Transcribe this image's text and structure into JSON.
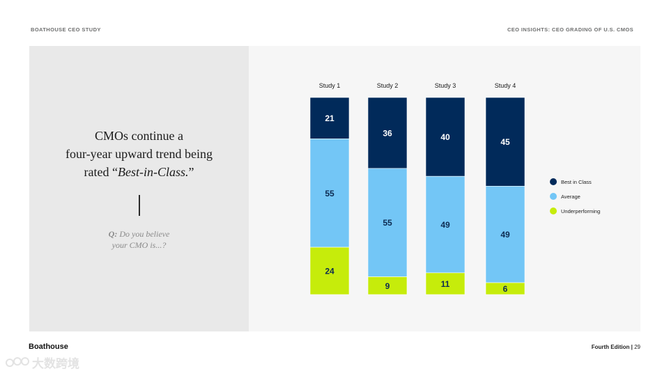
{
  "header": {
    "left": "BOATHOUSE CEO STUDY",
    "right": "CEO INSIGHTS: CEO GRADING OF U.S. CMOs"
  },
  "headline": {
    "line1": "CMOs continue a",
    "line2": "four-year upward trend being",
    "line3_prefix": "rated “",
    "line3_emph": "Best-in-Class.",
    "line3_suffix": "”"
  },
  "question": {
    "label": "Q:",
    "line1": "Do you believe",
    "line2": "your CMO is...?"
  },
  "footer": {
    "brand": "Boathouse",
    "edition": "Fourth Edition",
    "separator": "|",
    "page": "29"
  },
  "watermark": {
    "text": "大数跨境"
  },
  "colors": {
    "best": "#012a5a",
    "average": "#73c6f6",
    "under": "#c6ec0b"
  },
  "chart_data": {
    "type": "bar",
    "stacked": true,
    "normalized_to": 100,
    "categories": [
      "Study 1",
      "Study 2",
      "Study 3",
      "Study 4"
    ],
    "series": [
      {
        "name": "Best in Class",
        "values": [
          21,
          36,
          40,
          45
        ]
      },
      {
        "name": "Average",
        "values": [
          55,
          55,
          49,
          49
        ]
      },
      {
        "name": "Underperforming",
        "values": [
          24,
          9,
          11,
          6
        ]
      }
    ],
    "legend": {
      "position": "right"
    },
    "title": "",
    "xlabel": "",
    "ylabel": "",
    "grid": false
  }
}
